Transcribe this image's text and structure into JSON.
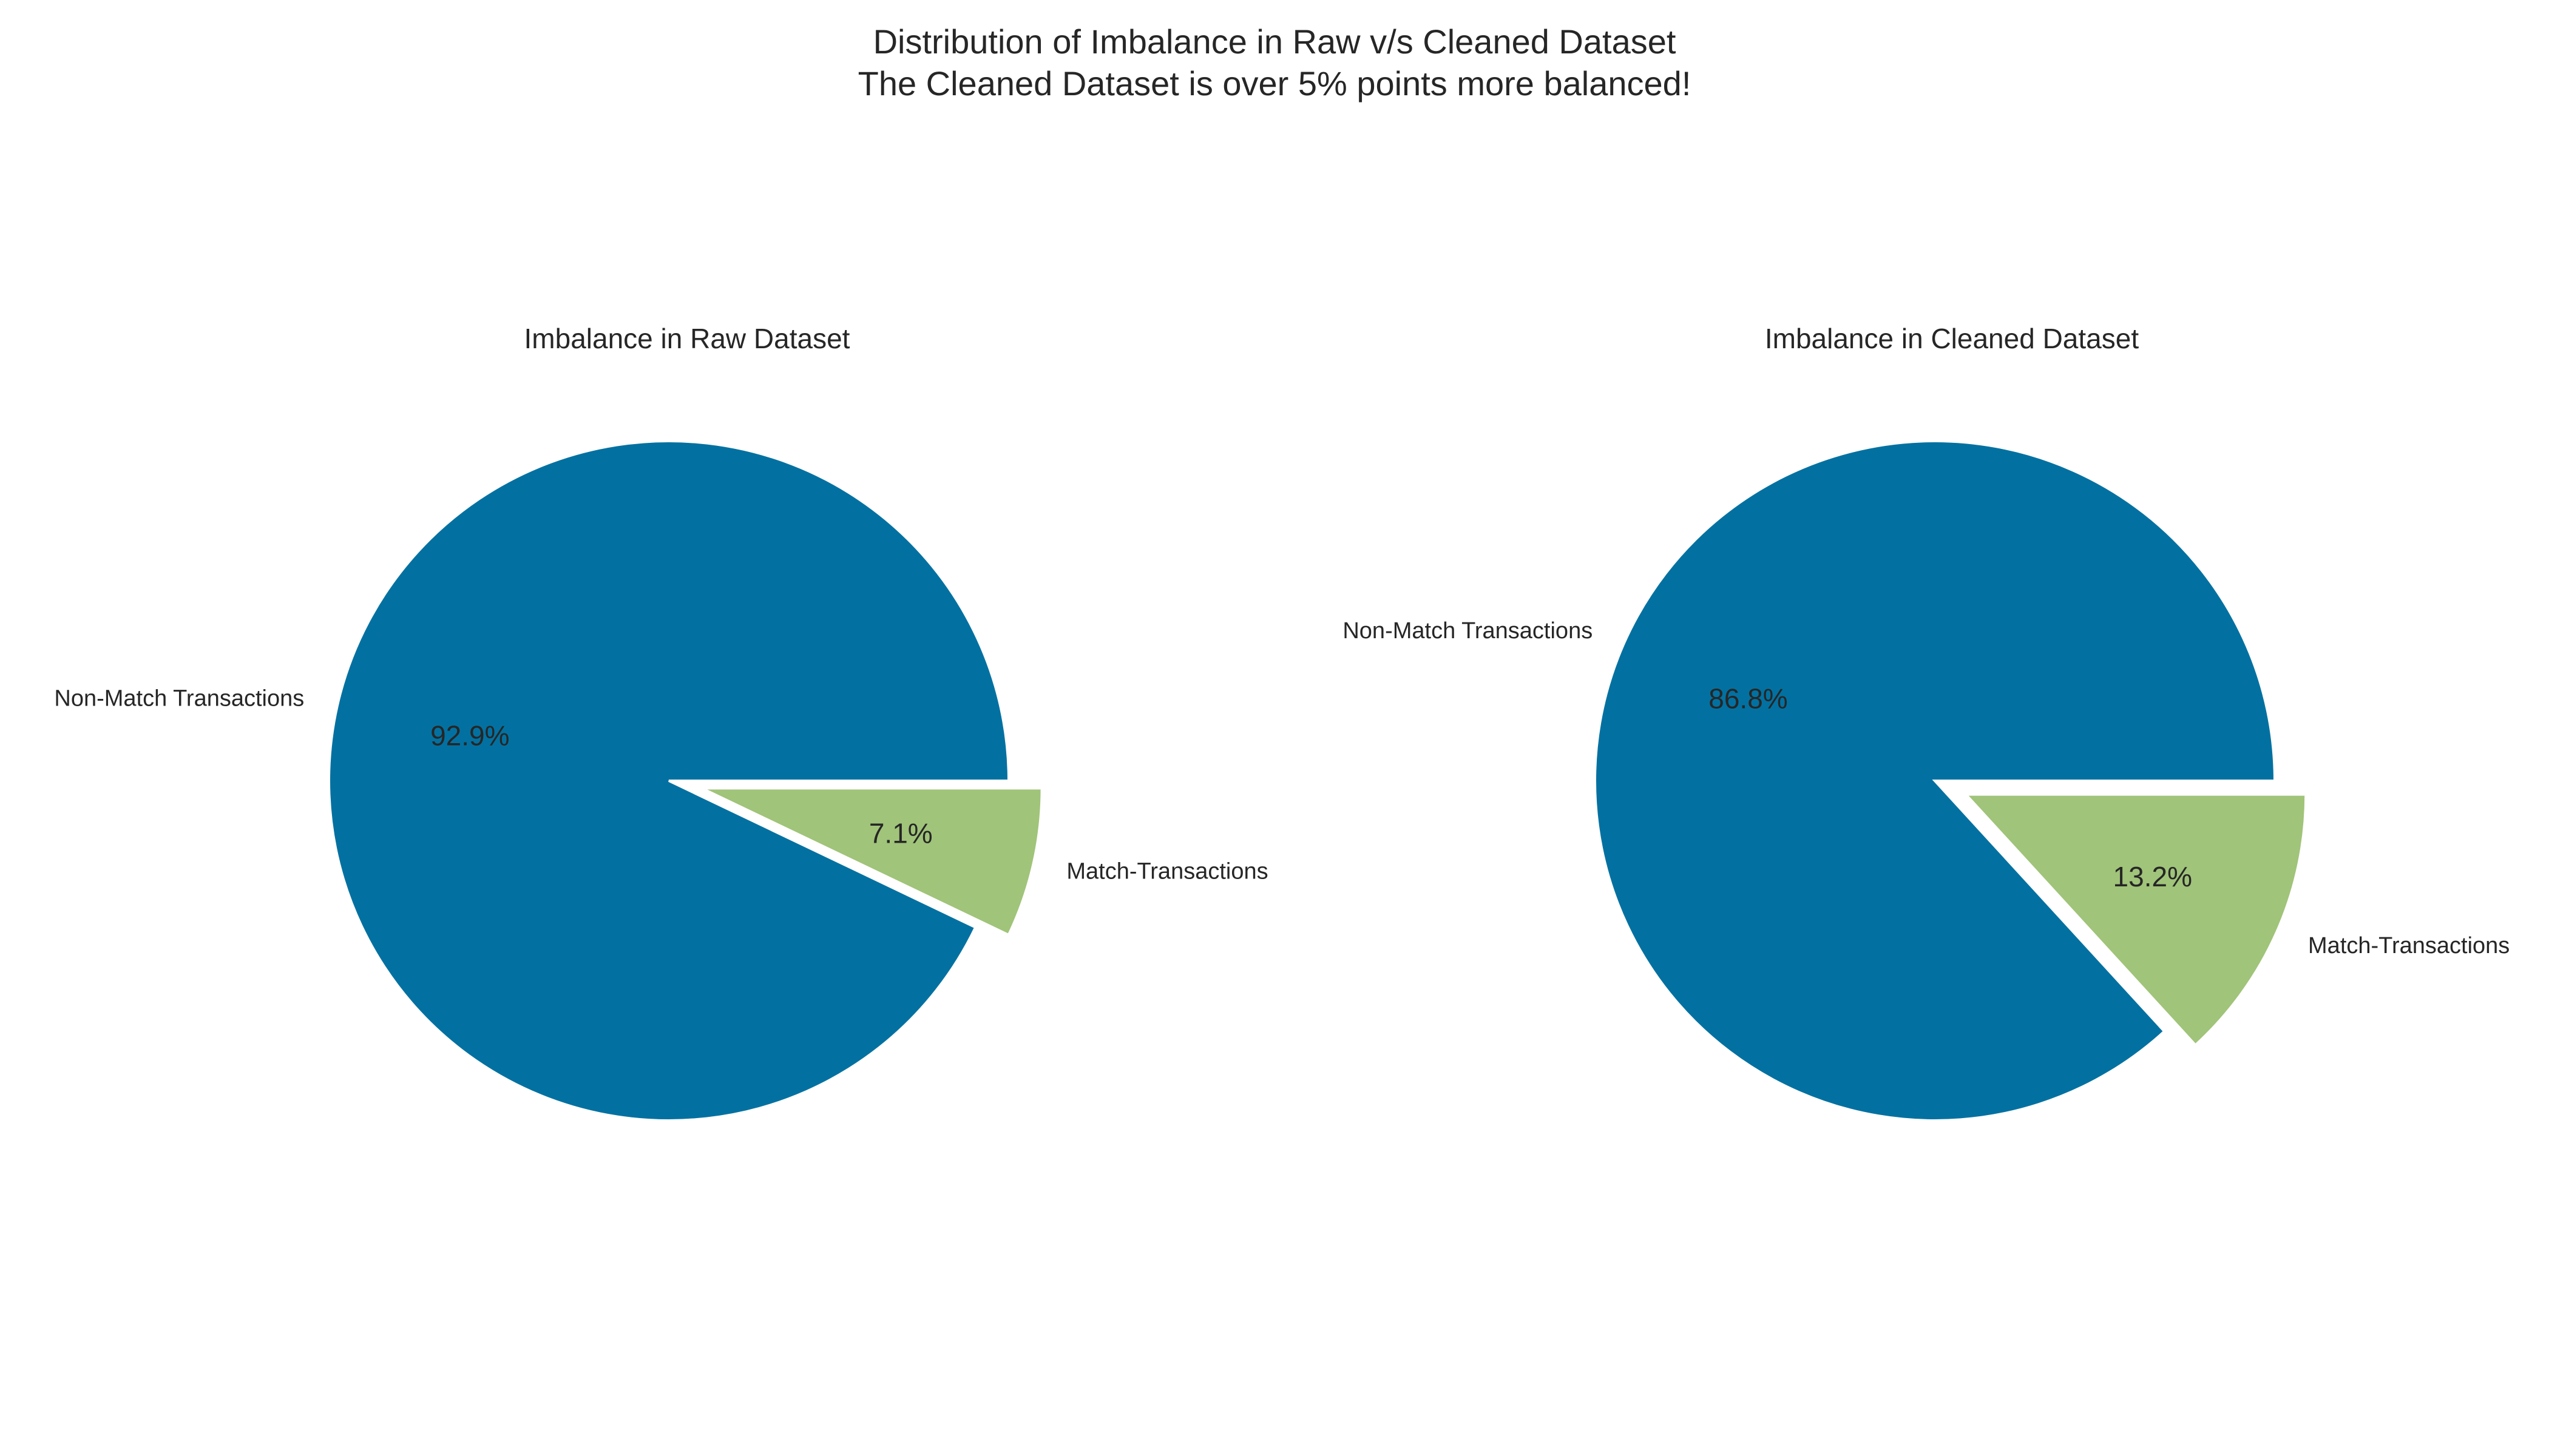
{
  "figure": {
    "suptitle_line1": "Distribution of Imbalance in Raw v/s Cleaned Dataset",
    "suptitle_line2": "The Cleaned Dataset is over 5% points more balanced!"
  },
  "colors": {
    "non_match": "#0271a1",
    "match": "#a0c479",
    "text": "#262626",
    "edge": "#ffffff"
  },
  "chart_data": [
    {
      "type": "pie",
      "title": "Imbalance in Raw Dataset",
      "categories": [
        "Non-Match Transactions",
        "Match-Transactions"
      ],
      "values": [
        92.9,
        7.1
      ],
      "value_labels": [
        "92.9%",
        "7.1%"
      ],
      "exploded": [
        false,
        true
      ],
      "start_angle_deg": 0,
      "direction": "counterclockwise"
    },
    {
      "type": "pie",
      "title": "Imbalance in Cleaned Dataset",
      "categories": [
        "Non-Match Transactions",
        "Match-Transactions"
      ],
      "values": [
        86.8,
        13.2
      ],
      "value_labels": [
        "86.8%",
        "13.2%"
      ],
      "exploded": [
        false,
        true
      ],
      "start_angle_deg": 0,
      "direction": "counterclockwise"
    }
  ]
}
